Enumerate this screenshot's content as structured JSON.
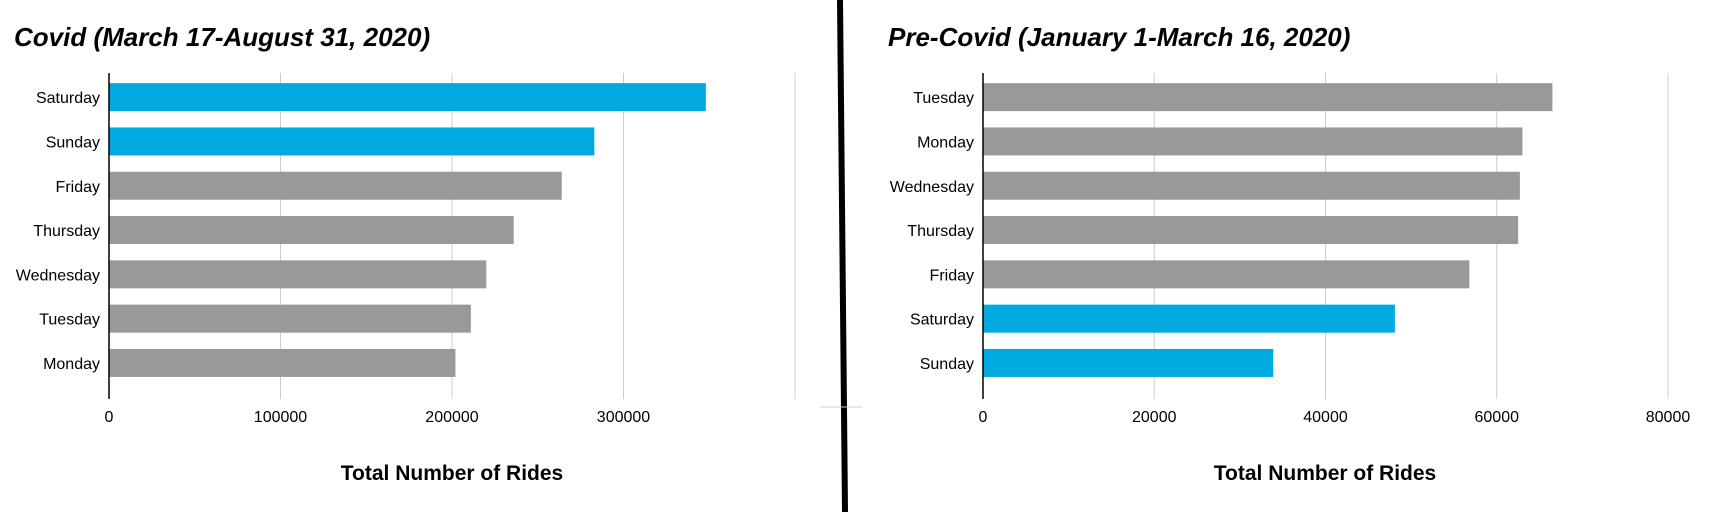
{
  "colors": {
    "highlight": "#00a9e0",
    "base": "#999999",
    "grid": "#cccccc",
    "axis": "#000000"
  },
  "chart_data": [
    {
      "type": "bar",
      "orientation": "horizontal",
      "title": "Covid (March 17-August 31, 2020)",
      "xlabel": "Total Number of Rides",
      "ylabel": "",
      "categories": [
        "Saturday",
        "Sunday",
        "Friday",
        "Thursday",
        "Wednesday",
        "Tuesday",
        "Monday"
      ],
      "values": [
        348000,
        283000,
        264000,
        236000,
        220000,
        211000,
        202000
      ],
      "highlighted": [
        "Saturday",
        "Sunday"
      ],
      "xlim": [
        0,
        400000
      ],
      "xticks": [
        0,
        100000,
        200000,
        300000
      ],
      "grid": true
    },
    {
      "type": "bar",
      "orientation": "horizontal",
      "title": "Pre-Covid (January 1-March 16, 2020)",
      "xlabel": "Total Number of Rides",
      "ylabel": "",
      "categories": [
        "Tuesday",
        "Monday",
        "Wednesday",
        "Thursday",
        "Friday",
        "Saturday",
        "Sunday"
      ],
      "values": [
        66500,
        63000,
        62700,
        62500,
        56800,
        48100,
        33900
      ],
      "highlighted": [
        "Saturday",
        "Sunday"
      ],
      "xlim": [
        0,
        80000
      ],
      "xticks": [
        0,
        20000,
        40000,
        60000,
        80000
      ],
      "grid": true
    }
  ]
}
